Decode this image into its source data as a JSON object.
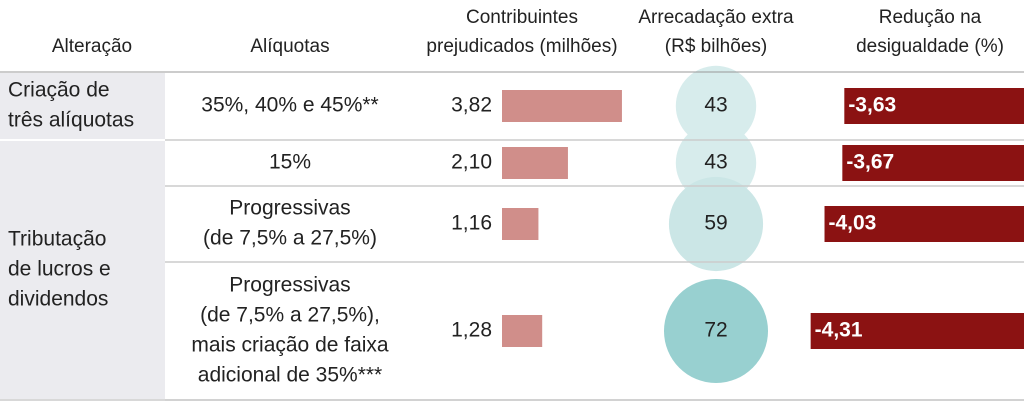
{
  "header": {
    "columns": [
      [
        "Alteração"
      ],
      [
        "Alíquotas"
      ],
      [
        "Contribuintes",
        "prejudicados (milhões)"
      ],
      [
        "Arrecadação extra",
        "(R$ bilhões)"
      ],
      [
        "Redução na",
        "desigualdade (%)"
      ]
    ]
  },
  "taxpayer_bar_color": "#d08e8a",
  "reduction_bar_color": "#8b1212",
  "groups": [
    {
      "label": [
        "Criação de",
        "três alíquotas"
      ],
      "rows": [
        {
          "rates": [
            "35%, 40% e 45%**"
          ],
          "taxpayers": {
            "value": 3.82,
            "label": "3,82"
          },
          "revenue": 43,
          "bubble_color": "#d7ecec",
          "inequality": {
            "value": -3.63,
            "label": "-3,63"
          }
        }
      ]
    },
    {
      "label": [
        "Tributação",
        "de lucros e",
        "dividendos"
      ],
      "rows": [
        {
          "rates": [
            "15%"
          ],
          "taxpayers": {
            "value": 2.1,
            "label": "2,10"
          },
          "revenue": 43,
          "bubble_color": "#d7ecec",
          "inequality": {
            "value": -3.67,
            "label": "-3,67"
          }
        },
        {
          "rates": [
            "Progressivas",
            "(de 7,5% a 27,5%)"
          ],
          "taxpayers": {
            "value": 1.16,
            "label": "1,16"
          },
          "revenue": 59,
          "bubble_color": "#cbe6e6",
          "inequality": {
            "value": -4.03,
            "label": "-4,03"
          }
        },
        {
          "rates": [
            "Progressivas",
            "(de 7,5% a 27,5%),",
            "mais criação de faixa",
            "adicional de 35%***"
          ],
          "taxpayers": {
            "value": 1.28,
            "label": "1,28"
          },
          "revenue": 72,
          "bubble_color": "#98d0d0",
          "inequality": {
            "value": -4.31,
            "label": "-4,31"
          }
        }
      ]
    }
  ]
}
